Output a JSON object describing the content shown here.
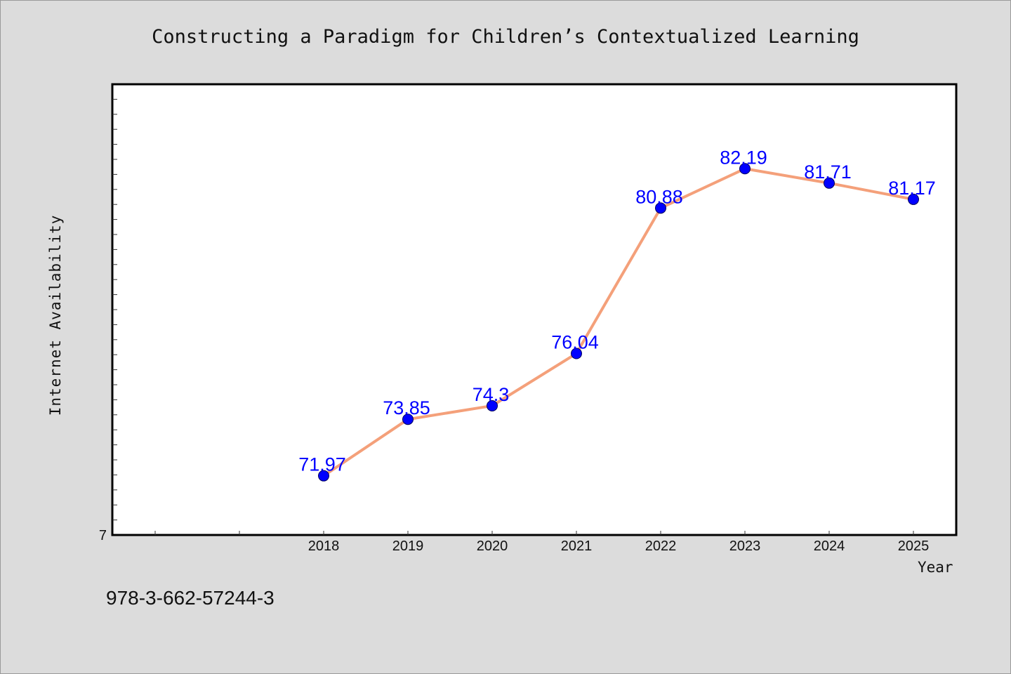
{
  "chart_data": {
    "type": "line",
    "title": "Constructing a Paradigm for Children’s Contextualized Learning",
    "xlabel": "Year",
    "ylabel": "Internet Availability",
    "x": [
      "2018",
      "2019",
      "2020",
      "2021",
      "2022",
      "2023",
      "2024",
      "2025"
    ],
    "series": [
      {
        "values": [
          71.97,
          73.85,
          74.3,
          76.04,
          80.88,
          82.19,
          81.71,
          81.17
        ]
      }
    ],
    "data_labels": [
      "71.97",
      "73.85",
      "74.3",
      "76.04",
      "80.88",
      "82.19",
      "81.71",
      "81.17"
    ],
    "y_tick_labels": [
      "7"
    ],
    "ylim": [
      70,
      85
    ],
    "grid": false,
    "legend": "none",
    "line_color": "#f4a07a",
    "marker_color": "#0000ff",
    "label_color": "#0000ff"
  },
  "footnote": "978-3-662-57244-3"
}
